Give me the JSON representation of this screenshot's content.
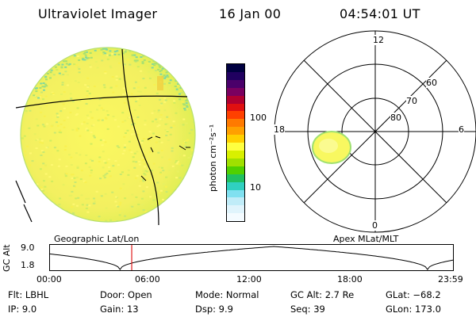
{
  "header": {
    "instrument": "Ultraviolet Imager",
    "date": "16 Jan 00",
    "time": "04:54:01 UT"
  },
  "colorbar": {
    "label": "photon cm⁻²s⁻¹",
    "ticks": [
      "100",
      "10"
    ],
    "colors": [
      "#000040",
      "#200060",
      "#4a006a",
      "#7a0060",
      "#b00030",
      "#e01010",
      "#ff4000",
      "#ff7a00",
      "#ffa000",
      "#ffd000",
      "#ffff40",
      "#d8f000",
      "#a0e000",
      "#50d000",
      "#20c060",
      "#30d0c0",
      "#80e0f0",
      "#c0ecf8",
      "#e0f4fc",
      "#f4fbff"
    ]
  },
  "left_panel": {
    "caption": "Geographic Lat/Lon"
  },
  "right_panel": {
    "caption": "Apex MLat/MLT",
    "mlt_labels": {
      "top": "12",
      "right": "6",
      "left": "18",
      "bottom": "0"
    },
    "lat_labels": [
      "60",
      "70",
      "80"
    ]
  },
  "timeline": {
    "axis_label": "GC Alt",
    "y_ticks": [
      "9.0",
      "1.8"
    ],
    "x_ticks": [
      "00:00",
      "06:00",
      "12:00",
      "18:00",
      "23:59"
    ],
    "current_time_fraction": 0.204
  },
  "info": {
    "flt": "Flt:  LBHL",
    "ip": "IP:  9.0",
    "door": "Door:  Open",
    "gain": "Gain:  13",
    "mode": "Mode:  Normal",
    "dsp": "Dsp:      9.9",
    "gc_alt": "GC Alt:  2.7 Re",
    "seq": "Seq:  39",
    "glat": "GLat:  −68.2",
    "glon": "GLon:  173.0"
  }
}
